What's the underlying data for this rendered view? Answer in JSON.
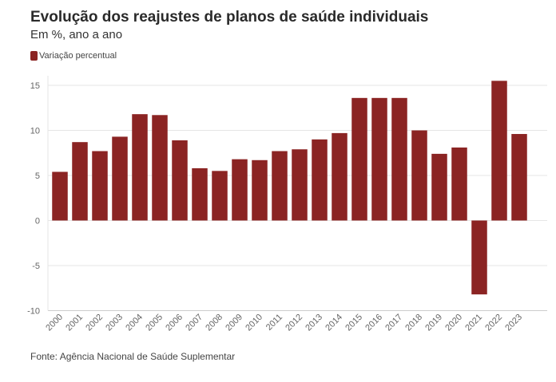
{
  "header": {
    "title": "Evolução dos reajustes de planos de saúde individuais",
    "subtitle": "Em %, ano a ano"
  },
  "legend": {
    "label": "Variação percentual"
  },
  "footer": {
    "source": "Fonte: Agência Nacional de Saúde Suplementar"
  },
  "colors": {
    "bar": "#8b2423",
    "grid": "#e6e6e6",
    "axis": "#cccccc"
  },
  "chart_data": {
    "type": "bar",
    "title": "Evolução dos reajustes de planos de saúde individuais",
    "subtitle": "Em %, ano a ano",
    "xlabel": "",
    "ylabel": "",
    "ylim": [
      -10,
      16
    ],
    "yticks": [
      15,
      10,
      5,
      0,
      -5,
      -10
    ],
    "grid": true,
    "legend_placement": "top-left",
    "categories": [
      "2000",
      "2001",
      "2002",
      "2003",
      "2004",
      "2005",
      "2006",
      "2007",
      "2008",
      "2009",
      "2010",
      "2011",
      "2012",
      "2013",
      "2014",
      "2015",
      "2016",
      "2017",
      "2018",
      "2019",
      "2020",
      "2021",
      "2022",
      "2023"
    ],
    "series": [
      {
        "name": "Variação percentual",
        "values": [
          5.4,
          8.7,
          7.7,
          9.3,
          11.8,
          11.7,
          8.9,
          5.8,
          5.5,
          6.8,
          6.7,
          7.7,
          7.9,
          9.0,
          9.7,
          13.6,
          13.6,
          13.6,
          10.0,
          7.4,
          8.1,
          -8.2,
          15.5,
          9.6
        ]
      }
    ]
  }
}
